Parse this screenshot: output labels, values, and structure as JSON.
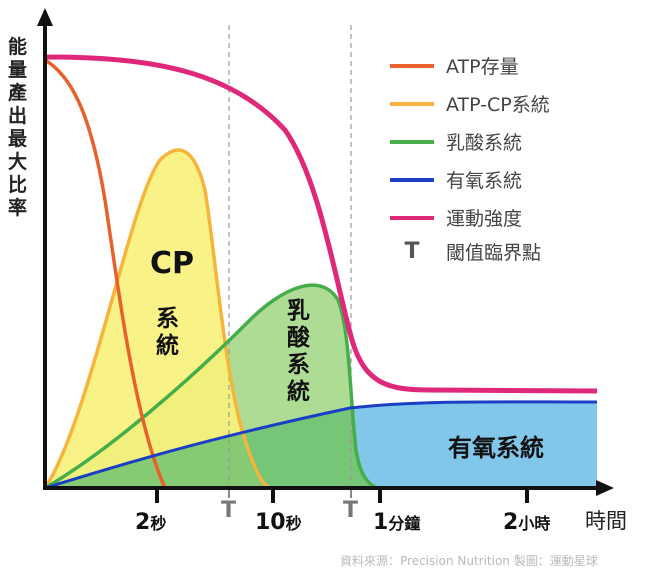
{
  "y_axis_label": "能量產出最大比率",
  "x_axis_label": "時間",
  "x_ticks": [
    {
      "num": "2",
      "unit": "秒"
    },
    {
      "num": "10",
      "unit": "秒"
    },
    {
      "num": "1",
      "unit": "分鐘"
    },
    {
      "num": "2",
      "unit": "小時"
    }
  ],
  "threshold_marker": "T",
  "legend": [
    {
      "label": "ATP存量",
      "color": "#e8612a"
    },
    {
      "label": "ATP-CP系統",
      "color": "#f7b43c"
    },
    {
      "label": "乳酸系統",
      "color": "#45ad4a"
    },
    {
      "label": "有氧系統",
      "color": "#1b3fc4"
    },
    {
      "label": "運動強度",
      "color": "#e0287a"
    },
    {
      "label": "閾值臨界點",
      "symbol": "T"
    }
  ],
  "region_labels": {
    "cp_top": "CP",
    "cp_bottom": "系統",
    "lactic": "乳酸系統",
    "aerobic": "有氧系統"
  },
  "source": "資料來源：Precision Nutrition 製圖：運動星球"
}
